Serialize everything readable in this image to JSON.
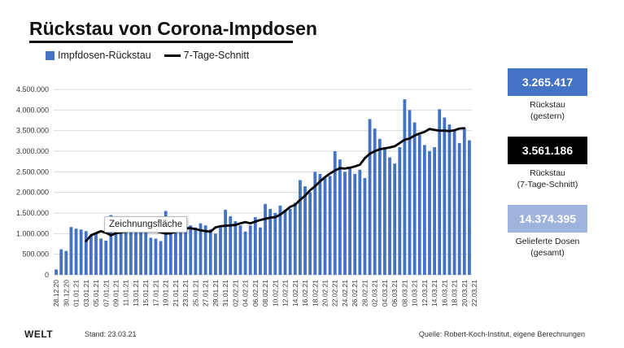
{
  "title": "Rückstau von Corona-Impdosen",
  "legend": {
    "bar_label": "Impfdosen-Rückstau",
    "line_label": "7-Tage-Schnitt",
    "bar_color": "#4472c4",
    "line_color": "#000000"
  },
  "tooltip": "Zeichnungsfläche",
  "kpis": [
    {
      "value": "3.265.417",
      "label": "Rückstau\n(gestern)",
      "color": "#4472c4"
    },
    {
      "value": "3.561.186",
      "label": "Rückstau\n(7-Tage-Schnitt)",
      "color": "#000000"
    },
    {
      "value": "14.374.395",
      "label": "Gelieferte Dosen\n(gesamt)",
      "color": "#9fb4dc"
    }
  ],
  "footer": {
    "logo": "WELT",
    "stand": "Stand:   23.03.21",
    "source": "Quelle: Robert-Koch-Institut, eigene Berechnungen"
  },
  "chart_data": {
    "type": "bar",
    "title": "Rückstau von Corona-Impdosen",
    "xlabel": "",
    "ylabel": "",
    "ylim": [
      0,
      4500000
    ],
    "y_ticks": [
      "0",
      "500.000",
      "1.000.000",
      "1.500.000",
      "2.000.000",
      "2.500.000",
      "3.000.000",
      "3.500.000",
      "4.000.000",
      "4.500.000"
    ],
    "grid": true,
    "x_tick_labels": [
      "28.12.20",
      "30.12.20",
      "01.01.21",
      "03.01.21",
      "05.01.21",
      "07.01.21",
      "09.01.21",
      "11.01.21",
      "13.01.21",
      "15.01.21",
      "17.01.21",
      "19.01.21",
      "21.01.21",
      "23.01.21",
      "25.01.21",
      "27.01.21",
      "29.01.21",
      "31.01.21",
      "02.02.21",
      "04.02.21",
      "06.02.21",
      "08.02.21",
      "10.02.21",
      "12.02.21",
      "14.02.21",
      "16.02.21",
      "18.02.21",
      "20.02.21",
      "22.02.21",
      "24.02.21",
      "26.02.21",
      "28.02.21",
      "02.03.21",
      "04.03.21",
      "06.03.21",
      "08.03.21",
      "10.03.21",
      "12.03.21",
      "14.03.21",
      "16.03.21",
      "18.03.21",
      "20.03.21",
      "22.03.21"
    ],
    "series": [
      {
        "name": "Impfdosen-Rückstau",
        "values": [
          130000,
          620000,
          580000,
          1160000,
          1120000,
          1100000,
          1060000,
          960000,
          1000000,
          880000,
          830000,
          1450000,
          1180000,
          1150000,
          1200000,
          1100000,
          1050000,
          1100000,
          1050000,
          900000,
          880000,
          820000,
          1550000,
          1350000,
          1300000,
          1250000,
          1300000,
          1200000,
          1150000,
          1250000,
          1200000,
          1100000,
          1000000,
          1150000,
          1580000,
          1420000,
          1300000,
          1200000,
          1050000,
          1200000,
          1400000,
          1150000,
          1720000,
          1600000,
          1500000,
          1680000,
          1580000,
          1600000,
          1750000,
          2300000,
          2150000,
          2000000,
          2500000,
          2450000,
          2350000,
          2400000,
          3000000,
          2800000,
          2500000,
          2600000,
          2450000,
          2550000,
          2350000,
          3780000,
          3550000,
          3300000,
          3100000,
          2850000,
          2700000,
          3100000,
          4260000,
          4000000,
          3700000,
          3400000,
          3150000,
          3000000,
          3100000,
          4020000,
          3820000,
          3650000,
          3500000,
          3200000,
          3550000,
          3265000
        ]
      },
      {
        "name": "7-Tage-Schnitt",
        "start_index": 6,
        "values": [
          820000,
          960000,
          1010000,
          1060000,
          1020000,
          960000,
          1010000,
          1030000,
          1050000,
          1080000,
          1090000,
          1100000,
          1090000,
          1080000,
          1060000,
          1030000,
          1000000,
          1010000,
          1050000,
          1100000,
          1130000,
          1130000,
          1110000,
          1080000,
          1060000,
          1050000,
          1150000,
          1180000,
          1190000,
          1200000,
          1210000,
          1250000,
          1280000,
          1250000,
          1290000,
          1330000,
          1360000,
          1390000,
          1400000,
          1460000,
          1550000,
          1650000,
          1700000,
          1820000,
          1920000,
          2050000,
          2150000,
          2270000,
          2370000,
          2460000,
          2530000,
          2590000,
          2580000,
          2600000,
          2630000,
          2670000,
          2830000,
          2940000,
          3000000,
          3050000,
          3070000,
          3090000,
          3120000,
          3200000,
          3280000,
          3310000,
          3380000,
          3430000,
          3470000,
          3540000,
          3520000,
          3500000,
          3500000,
          3490000,
          3510000,
          3550000,
          3561186
        ]
      }
    ]
  }
}
